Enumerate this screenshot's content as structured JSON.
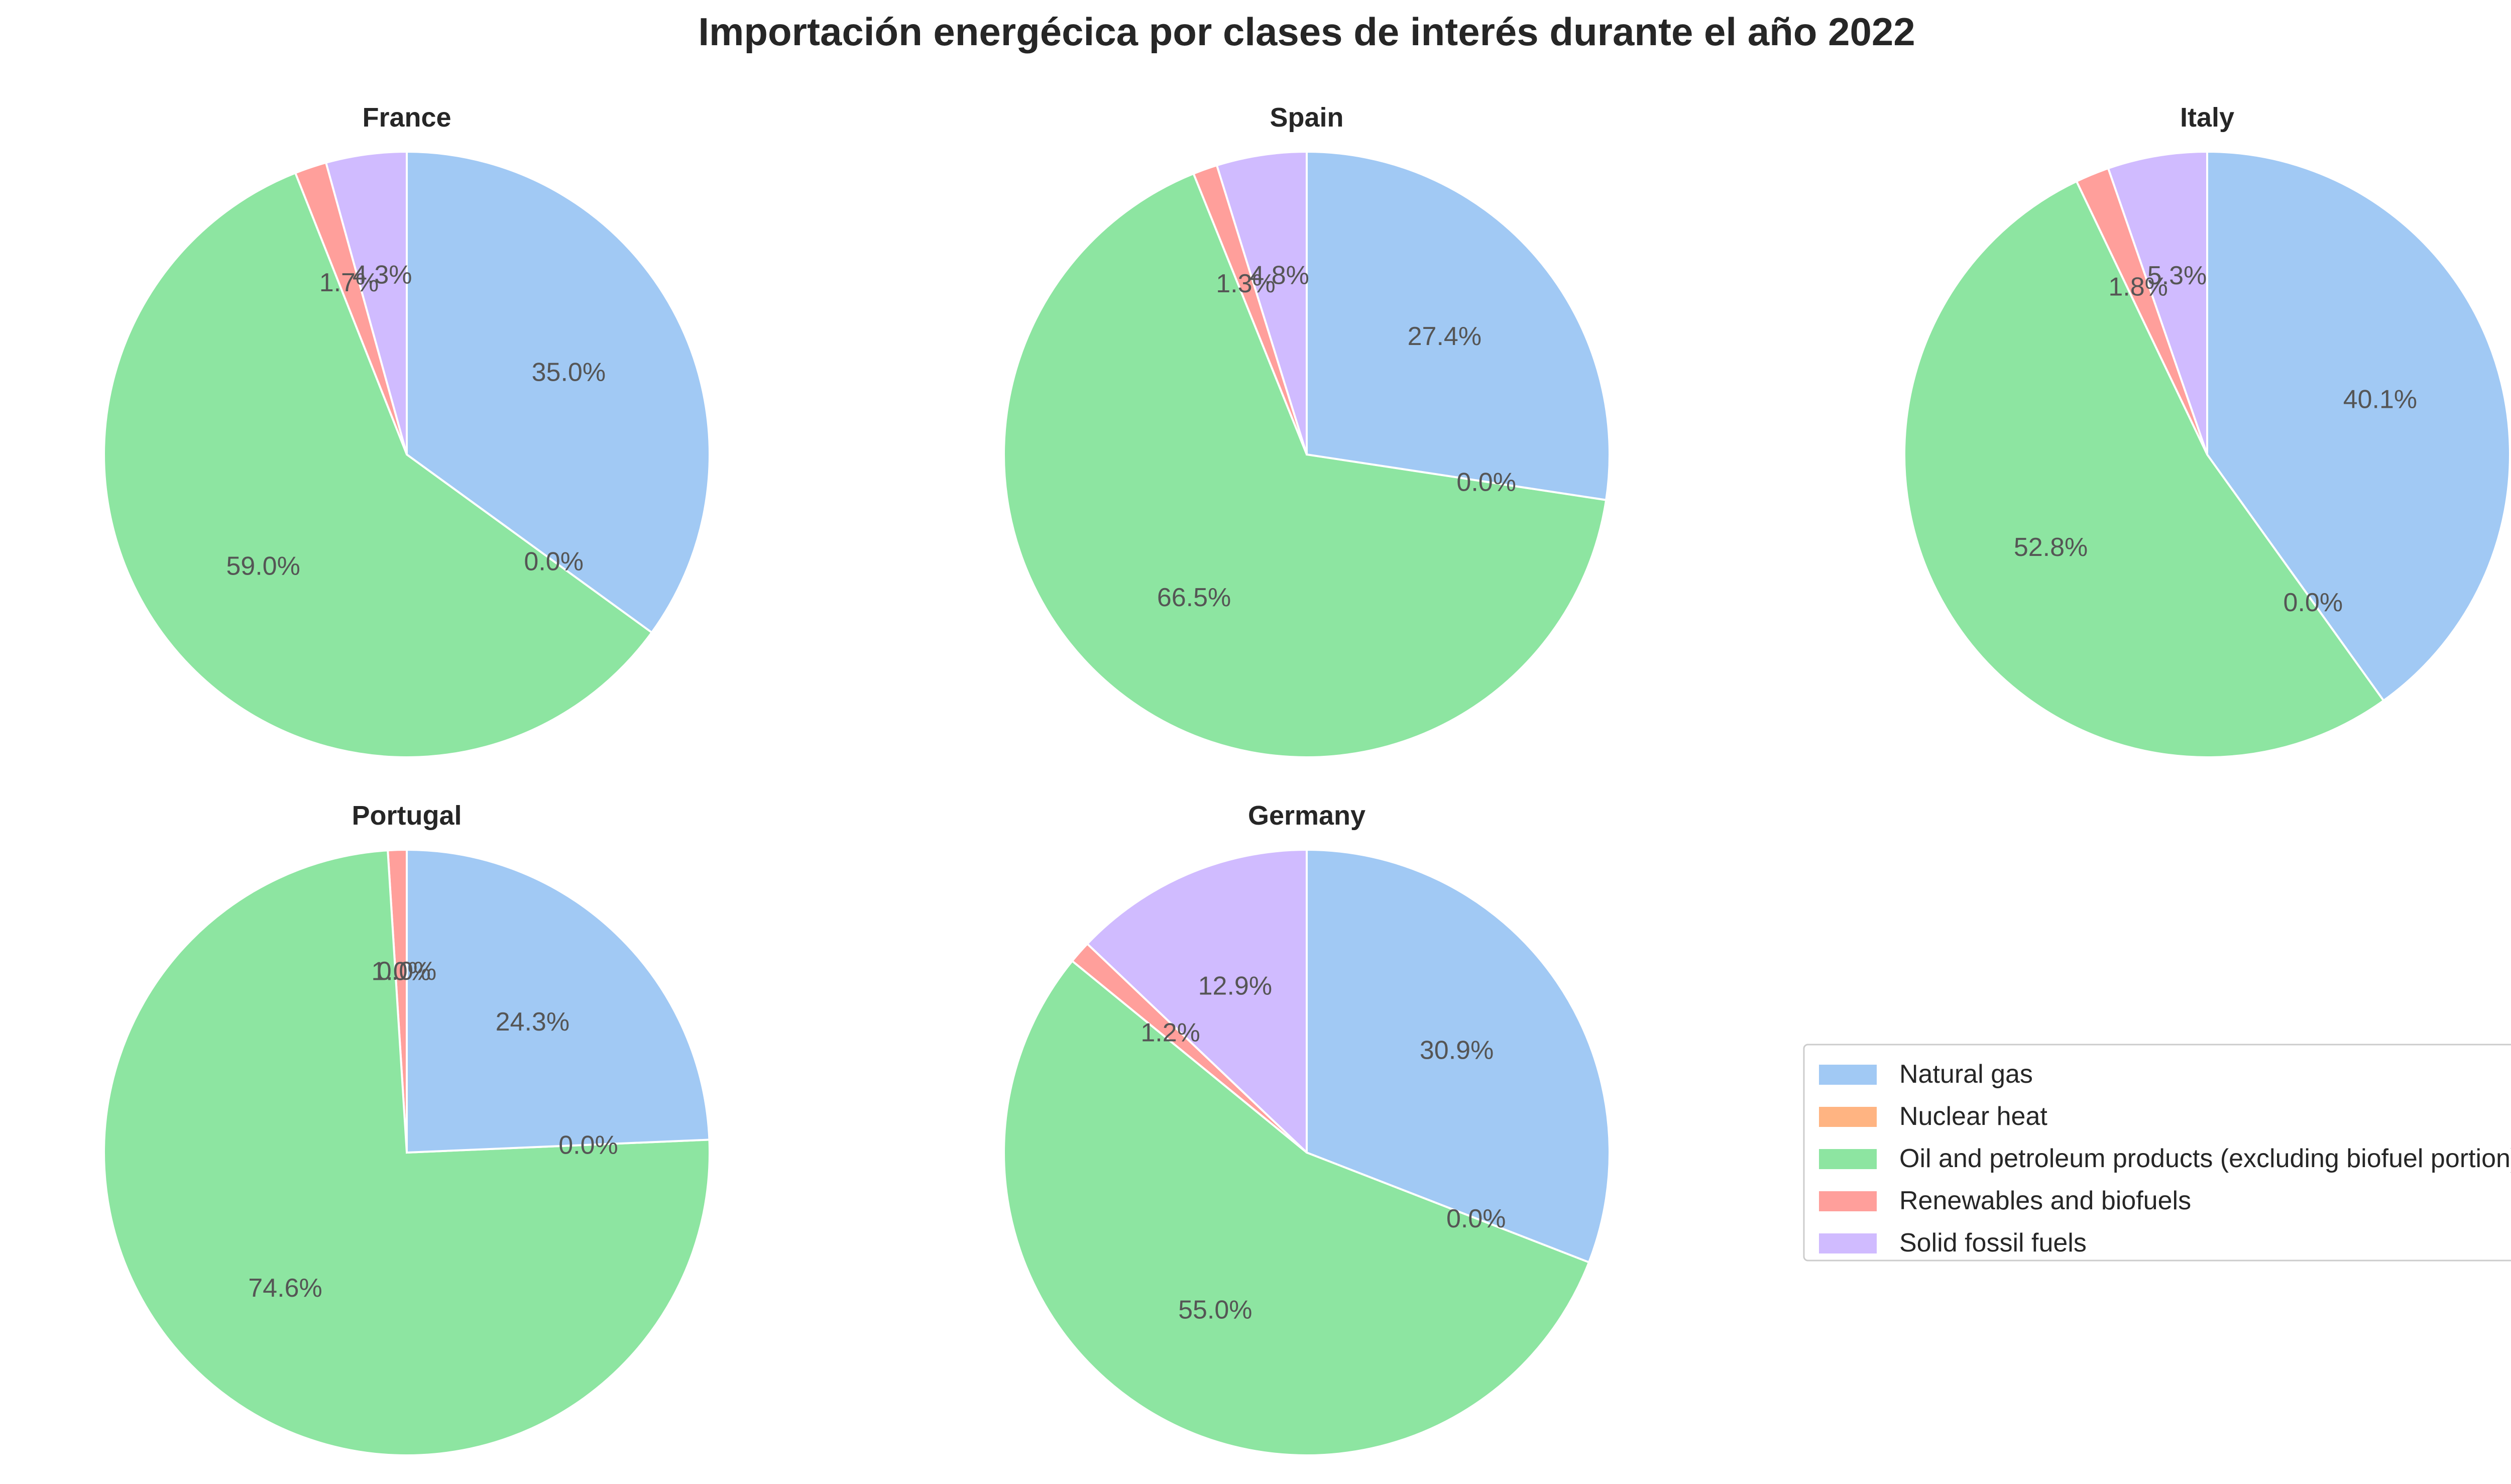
{
  "title": "Importación energécica por clases de interés durante el año 2022",
  "colors": {
    "Natural gas": "#a1c9f4",
    "Nuclear heat": "#ffb482",
    "Oil and petroleum products (excluding biofuel portion)": "#8de5a1",
    "Renewables and biofuels": "#ff9f9b",
    "Solid fossil fuels": "#d0bbff"
  },
  "legend": {
    "placement": "lower-right",
    "entries": [
      "Natural gas",
      "Nuclear heat",
      "Oil and petroleum products (excluding biofuel portion)",
      "Renewables and biofuels",
      "Solid fossil fuels"
    ]
  },
  "chart_data": [
    {
      "type": "pie",
      "title": "France",
      "labels": [
        "Solid fossil fuels",
        "Renewables and biofuels",
        "Oil and petroleum products (excluding biofuel portion)",
        "Nuclear heat",
        "Natural gas"
      ],
      "values": [
        4.3,
        1.7,
        59.0,
        0.0,
        35.0
      ],
      "value_labels": [
        "4.3%",
        "1.7%",
        "59.0%",
        "0.0%",
        "35.0%"
      ]
    },
    {
      "type": "pie",
      "title": "Spain",
      "labels": [
        "Solid fossil fuels",
        "Renewables and biofuels",
        "Oil and petroleum products (excluding biofuel portion)",
        "Nuclear heat",
        "Natural gas"
      ],
      "values": [
        4.8,
        1.3,
        66.5,
        0.0,
        27.4
      ],
      "value_labels": [
        "4.8%",
        "1.3%",
        "66.5%",
        "0.0%",
        "27.4%"
      ]
    },
    {
      "type": "pie",
      "title": "Italy",
      "labels": [
        "Solid fossil fuels",
        "Renewables and biofuels",
        "Oil and petroleum products (excluding biofuel portion)",
        "Nuclear heat",
        "Natural gas"
      ],
      "values": [
        5.3,
        1.8,
        52.8,
        0.0,
        40.1
      ],
      "value_labels": [
        "5.3%",
        "1.8%",
        "52.8%",
        "0.0%",
        "40.1%"
      ]
    },
    {
      "type": "pie",
      "title": "Portugal",
      "labels": [
        "Solid fossil fuels",
        "Renewables and biofuels",
        "Oil and petroleum products (excluding biofuel portion)",
        "Nuclear heat",
        "Natural gas"
      ],
      "values": [
        0.0,
        1.0,
        74.6,
        0.0,
        24.3
      ],
      "value_labels": [
        "0.0%",
        "1.0%",
        "74.6%",
        "0.0%",
        "24.3%"
      ]
    },
    {
      "type": "pie",
      "title": "Germany",
      "labels": [
        "Solid fossil fuels",
        "Renewables and biofuels",
        "Oil and petroleum products (excluding biofuel portion)",
        "Nuclear heat",
        "Natural gas"
      ],
      "values": [
        12.9,
        1.2,
        55.0,
        0.0,
        30.9
      ],
      "value_labels": [
        "12.9%",
        "1.2%",
        "55.0%",
        "0.0%",
        "30.9%"
      ]
    }
  ]
}
